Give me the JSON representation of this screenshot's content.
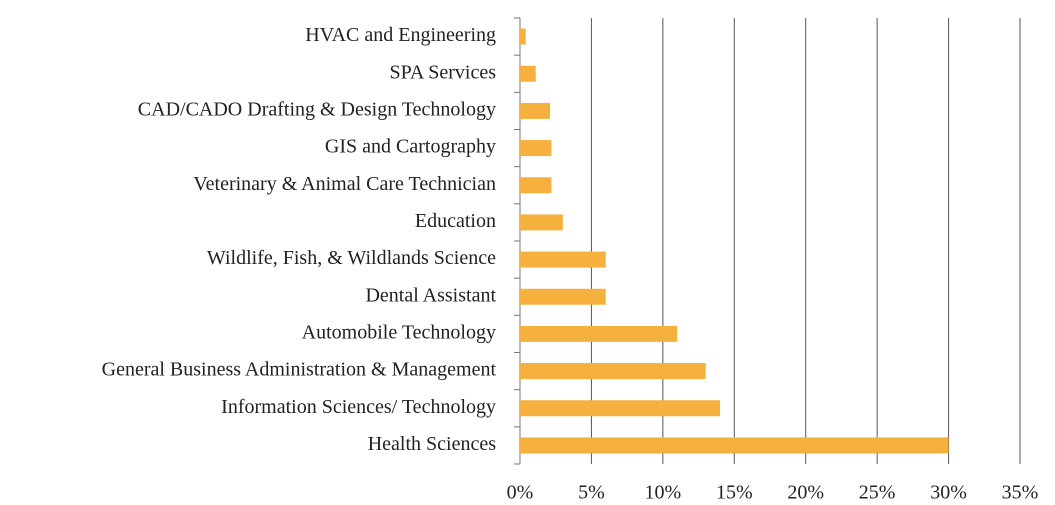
{
  "chart_data": {
    "type": "barh",
    "categories": [
      "HVAC and Engineering",
      "SPA Services",
      "CAD/CADO Drafting & Design Technology",
      "GIS and Cartography",
      "Veterinary & Animal Care Technician",
      "Education",
      "Wildlife, Fish, & Wildlands Science",
      "Dental Assistant",
      "Automobile Technology",
      "General Business Administration & Management",
      "Information Sciences/ Technology",
      "Health Sciences"
    ],
    "values": [
      0.4,
      1.1,
      2.1,
      2.2,
      2.2,
      3,
      6,
      6,
      11,
      13,
      14,
      30
    ],
    "color": "#f5b03e",
    "xlim": [
      0,
      35
    ],
    "xticks": [
      {
        "value": 0,
        "label": "0%"
      },
      {
        "value": 5,
        "label": "5%"
      },
      {
        "value": 10,
        "label": "10%"
      },
      {
        "value": 15,
        "label": "15%"
      },
      {
        "value": 20,
        "label": "20%"
      },
      {
        "value": 25,
        "label": "25%"
      },
      {
        "value": 30,
        "label": "30%"
      },
      {
        "value": 35,
        "label": "35%"
      }
    ],
    "grid": true
  }
}
